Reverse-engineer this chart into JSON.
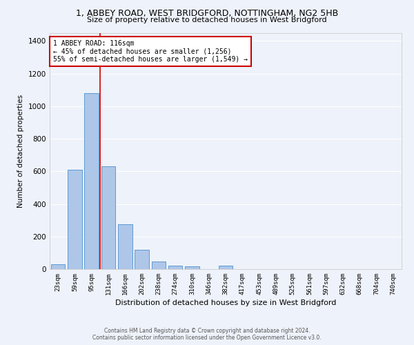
{
  "title": "1, ABBEY ROAD, WEST BRIDGFORD, NOTTINGHAM, NG2 5HB",
  "subtitle": "Size of property relative to detached houses in West Bridgford",
  "xlabel": "Distribution of detached houses by size in West Bridgford",
  "ylabel": "Number of detached properties",
  "bar_color": "#aec6e8",
  "bar_edgecolor": "#5b9bd5",
  "background_color": "#eef2fa",
  "grid_color": "#ffffff",
  "categories": [
    "23sqm",
    "59sqm",
    "95sqm",
    "131sqm",
    "166sqm",
    "202sqm",
    "238sqm",
    "274sqm",
    "310sqm",
    "346sqm",
    "382sqm",
    "417sqm",
    "453sqm",
    "489sqm",
    "525sqm",
    "561sqm",
    "597sqm",
    "632sqm",
    "668sqm",
    "704sqm",
    "740sqm"
  ],
  "values": [
    30,
    610,
    1080,
    630,
    275,
    120,
    48,
    20,
    18,
    0,
    20,
    0,
    0,
    0,
    0,
    0,
    0,
    0,
    0,
    0,
    0
  ],
  "ylim": [
    0,
    1450
  ],
  "yticks": [
    0,
    200,
    400,
    600,
    800,
    1000,
    1200,
    1400
  ],
  "vline_x": 2.5,
  "annotation_title": "1 ABBEY ROAD: 116sqm",
  "annotation_line1": "← 45% of detached houses are smaller (1,256)",
  "annotation_line2": "55% of semi-detached houses are larger (1,549) →",
  "annotation_box_color": "#ffffff",
  "annotation_box_edgecolor": "#cc0000",
  "vline_color": "#cc0000",
  "footer_line1": "Contains HM Land Registry data © Crown copyright and database right 2024.",
  "footer_line2": "Contains public sector information licensed under the Open Government Licence v3.0."
}
